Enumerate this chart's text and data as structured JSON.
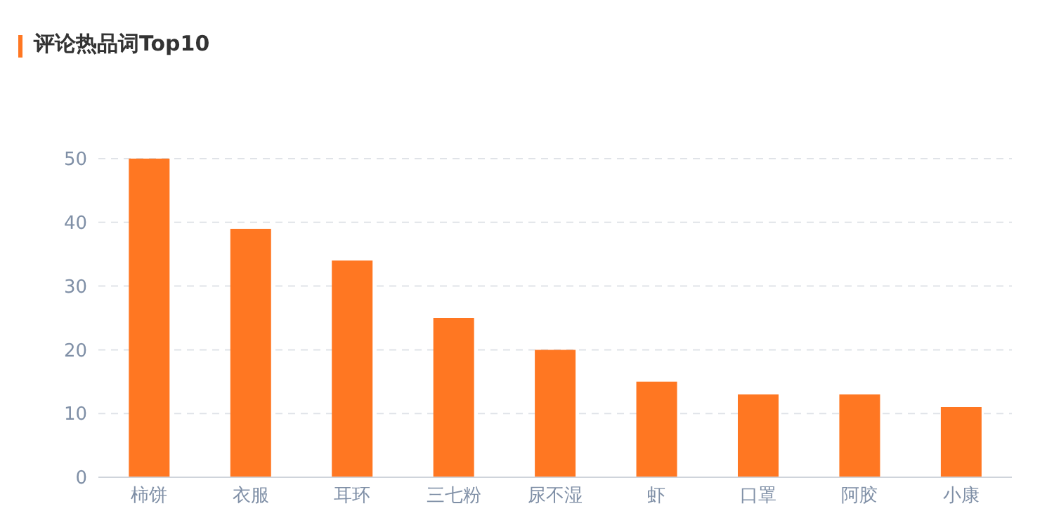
{
  "chart_data": {
    "type": "bar",
    "title": "评论热品词Top10",
    "categories": [
      "柿饼",
      "衣服",
      "耳环",
      "三七粉",
      "尿不湿",
      "虾",
      "口罩",
      "阿胶",
      "小康"
    ],
    "values": [
      50,
      39,
      34,
      25,
      20,
      15,
      13,
      13,
      11
    ],
    "color": "#ff7722",
    "ylim": [
      0,
      50
    ],
    "yticks": [
      0,
      10,
      20,
      30,
      40,
      50
    ],
    "grid": "y",
    "legend": false
  }
}
